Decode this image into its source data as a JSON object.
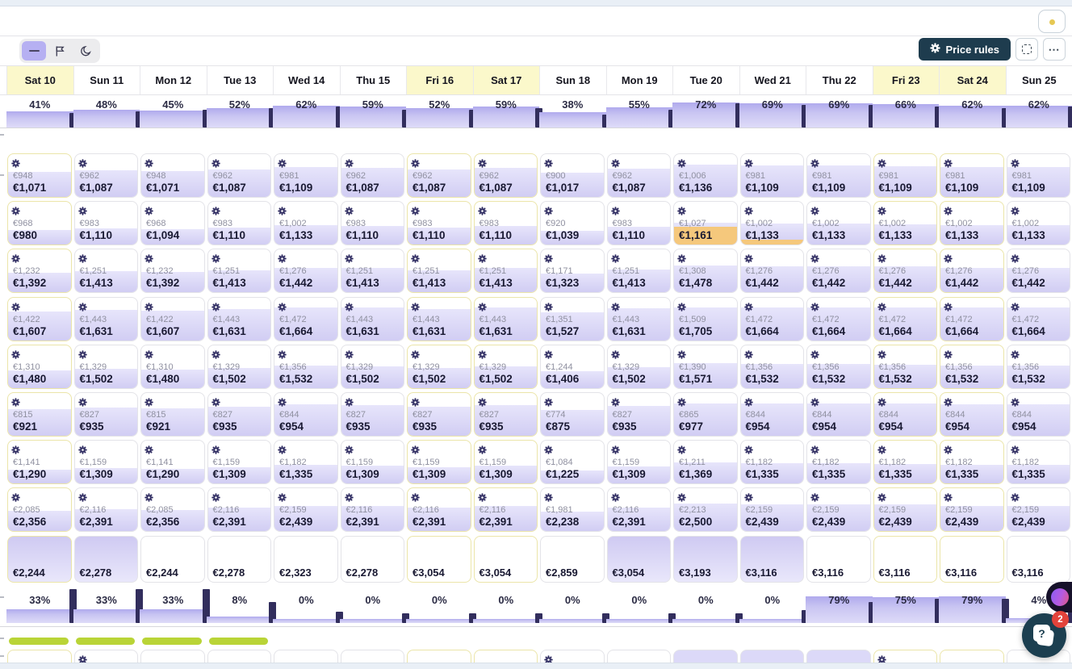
{
  "header": {
    "view_modes": [
      {
        "id": "base",
        "icon": "minus-icon",
        "active": true
      },
      {
        "id": "flags",
        "icon": "flag-icon",
        "active": false
      },
      {
        "id": "nights",
        "icon": "moon-icon",
        "active": false
      }
    ],
    "price_rules_label": "Price rules",
    "panel_toggle_dot_color": "#e6c853"
  },
  "calendar": {
    "dates": [
      {
        "label": "Sat 10",
        "highlight": true
      },
      {
        "label": "Sun 11",
        "highlight": false
      },
      {
        "label": "Mon 12",
        "highlight": false
      },
      {
        "label": "Tue 13",
        "highlight": false
      },
      {
        "label": "Wed 14",
        "highlight": false
      },
      {
        "label": "Thu 15",
        "highlight": false
      },
      {
        "label": "Fri 16",
        "highlight": true
      },
      {
        "label": "Sat 17",
        "highlight": true
      },
      {
        "label": "Sun 18",
        "highlight": false
      },
      {
        "label": "Mon 19",
        "highlight": false
      },
      {
        "label": "Tue 20",
        "highlight": false
      },
      {
        "label": "Wed 21",
        "highlight": false
      },
      {
        "label": "Thu 22",
        "highlight": false
      },
      {
        "label": "Fri 23",
        "highlight": true
      },
      {
        "label": "Sat 24",
        "highlight": true
      },
      {
        "label": "Sun 25",
        "highlight": false
      }
    ],
    "weekend_columns": [
      0,
      6,
      7,
      13,
      14
    ],
    "occupancy_top": {
      "values": [
        41,
        48,
        45,
        52,
        62,
        59,
        52,
        59,
        38,
        55,
        72,
        69,
        69,
        66,
        62,
        62
      ],
      "divider_heights": [
        18,
        20,
        22,
        24,
        26,
        22,
        22,
        24,
        16,
        22,
        30,
        28,
        28,
        26,
        24,
        26
      ]
    },
    "occupancy_bottom": {
      "values": [
        33,
        33,
        33,
        8,
        0,
        0,
        0,
        0,
        0,
        0,
        0,
        0,
        79,
        75,
        79,
        4
      ],
      "divider_heights": [
        42,
        42,
        42,
        26,
        14,
        12,
        12,
        12,
        12,
        12,
        12,
        16,
        26,
        30,
        30,
        24
      ]
    },
    "price_rows": [
      {
        "base": [
          "€948",
          "€962",
          "€948",
          "€962",
          "€981",
          "€962",
          "€962",
          "€962",
          "€900",
          "€962",
          "€1,006",
          "€981",
          "€981",
          "€981",
          "€981",
          "€981"
        ],
        "final": [
          "€1,071",
          "€1,087",
          "€1,071",
          "€1,087",
          "€1,109",
          "€1,087",
          "€1,087",
          "€1,087",
          "€1,017",
          "€1,087",
          "€1,136",
          "€1,109",
          "€1,109",
          "€1,109",
          "€1,109",
          "€1,109"
        ]
      },
      {
        "base": [
          "€968",
          "€983",
          "€968",
          "€983",
          "€1,002",
          "€983",
          "€983",
          "€983",
          "€920",
          "€983",
          "€1,027",
          "€1,002",
          "€1,002",
          "€1,002",
          "€1,002",
          "€1,002"
        ],
        "final": [
          "€980",
          "€1,110",
          "€1,094",
          "€1,110",
          "€1,133",
          "€1,110",
          "€1,110",
          "€1,110",
          "€1,039",
          "€1,110",
          "€1,161",
          "€1,133",
          "€1,133",
          "€1,133",
          "€1,133",
          "€1,133"
        ]
      },
      {
        "base": [
          "€1,232",
          "€1,251",
          "€1,232",
          "€1,251",
          "€1,276",
          "€1,251",
          "€1,251",
          "€1,251",
          "€1,171",
          "€1,251",
          "€1,308",
          "€1,276",
          "€1,276",
          "€1,276",
          "€1,276",
          "€1,276"
        ],
        "final": [
          "€1,392",
          "€1,413",
          "€1,392",
          "€1,413",
          "€1,442",
          "€1,413",
          "€1,413",
          "€1,413",
          "€1,323",
          "€1,413",
          "€1,478",
          "€1,442",
          "€1,442",
          "€1,442",
          "€1,442",
          "€1,442"
        ]
      },
      {
        "base": [
          "€1,422",
          "€1,443",
          "€1,422",
          "€1,443",
          "€1,472",
          "€1,443",
          "€1,443",
          "€1,443",
          "€1,351",
          "€1,443",
          "€1,509",
          "€1,472",
          "€1,472",
          "€1,472",
          "€1,472",
          "€1,472"
        ],
        "final": [
          "€1,607",
          "€1,631",
          "€1,607",
          "€1,631",
          "€1,664",
          "€1,631",
          "€1,631",
          "€1,631",
          "€1,527",
          "€1,631",
          "€1,705",
          "€1,664",
          "€1,664",
          "€1,664",
          "€1,664",
          "€1,664"
        ]
      },
      {
        "base": [
          "€1,310",
          "€1,329",
          "€1,310",
          "€1,329",
          "€1,356",
          "€1,329",
          "€1,329",
          "€1,329",
          "€1,244",
          "€1,329",
          "€1,390",
          "€1,356",
          "€1,356",
          "€1,356",
          "€1,356",
          "€1,356"
        ],
        "final": [
          "€1,480",
          "€1,502",
          "€1,480",
          "€1,502",
          "€1,532",
          "€1,502",
          "€1,502",
          "€1,502",
          "€1,406",
          "€1,502",
          "€1,571",
          "€1,532",
          "€1,532",
          "€1,532",
          "€1,532",
          "€1,532"
        ]
      },
      {
        "base": [
          "€815",
          "€827",
          "€815",
          "€827",
          "€844",
          "€827",
          "€827",
          "€827",
          "€774",
          "€827",
          "€865",
          "€844",
          "€844",
          "€844",
          "€844",
          "€844"
        ],
        "final": [
          "€921",
          "€935",
          "€921",
          "€935",
          "€954",
          "€935",
          "€935",
          "€935",
          "€875",
          "€935",
          "€977",
          "€954",
          "€954",
          "€954",
          "€954",
          "€954"
        ]
      },
      {
        "base": [
          "€1,141",
          "€1,159",
          "€1,141",
          "€1,159",
          "€1,182",
          "€1,159",
          "€1,159",
          "€1,159",
          "€1,084",
          "€1,159",
          "€1,211",
          "€1,182",
          "€1,182",
          "€1,182",
          "€1,182",
          "€1,182"
        ],
        "final": [
          "€1,290",
          "€1,309",
          "€1,290",
          "€1,309",
          "€1,335",
          "€1,309",
          "€1,309",
          "€1,309",
          "€1,225",
          "€1,309",
          "€1,369",
          "€1,335",
          "€1,335",
          "€1,335",
          "€1,335",
          "€1,335"
        ]
      },
      {
        "base": [
          "€2,085",
          "€2,116",
          "€2,085",
          "€2,116",
          "€2,159",
          "€2,116",
          "€2,116",
          "€2,116",
          "€1,981",
          "€2,116",
          "€2,213",
          "€2,159",
          "€2,159",
          "€2,159",
          "€2,159",
          "€2,159"
        ],
        "final": [
          "€2,356",
          "€2,391",
          "€2,356",
          "€2,391",
          "€2,439",
          "€2,391",
          "€2,391",
          "€2,391",
          "€2,238",
          "€2,391",
          "€2,500",
          "€2,439",
          "€2,439",
          "€2,439",
          "€2,439",
          "€2,439"
        ]
      }
    ],
    "orange_highlights": [
      {
        "row_index": 1,
        "col_index": 10,
        "height_pct": 42
      },
      {
        "row_index": 1,
        "col_index": 11,
        "height_pct": 12
      }
    ],
    "single_price_row": {
      "values": [
        "€2,244",
        "€2,278",
        "€2,244",
        "€2,278",
        "€2,323",
        "€2,278",
        "€3,054",
        "€3,054",
        "€2,859",
        "€3,054",
        "€3,193",
        "€3,116",
        "€3,116",
        "€3,116",
        "€3,116",
        "€3,116"
      ],
      "tinted_columns": [
        0,
        1,
        9,
        10,
        11
      ]
    },
    "availability_bars": {
      "columns": [
        0,
        1,
        2,
        3
      ],
      "color": "#b9d437"
    },
    "partial_row": {
      "tinted_columns": [
        10,
        11,
        12
      ],
      "gear_columns": [
        1,
        8,
        13
      ]
    }
  },
  "chat_widget": {
    "badge_count": "2"
  },
  "colors": {
    "accent_purple": "#b6b0f2",
    "bar_purple_top": "#b0aaed",
    "divider_navy": "#322e5d",
    "highlight_yellow": "#fbf8cb",
    "weekend_border": "#ebe5a9",
    "orange": "#f5c87c",
    "dark_button": "#1e3c4e",
    "green": "#b9d437",
    "gear_navy": "#312e63"
  }
}
